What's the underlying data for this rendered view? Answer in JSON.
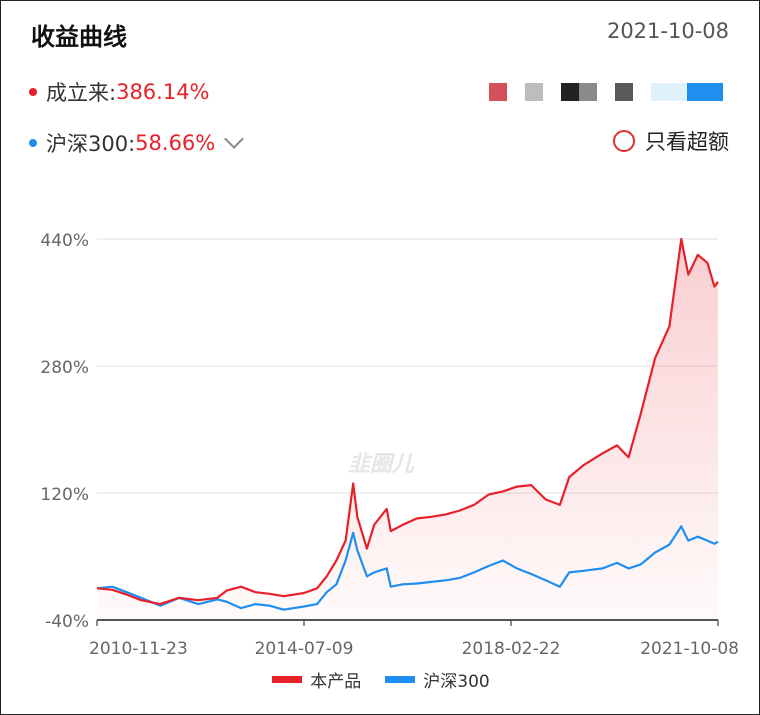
{
  "header": {
    "title": "收益曲线",
    "date": "2021-10-08",
    "product_label": "成立来:",
    "product_value": "386.14%",
    "bench_label": "沪深300:",
    "bench_value": "58.66%",
    "excess_label": "只看超额",
    "swatch_colors": [
      "#d4505a",
      "#ffffff",
      "#bdbdbd",
      "#ffffff",
      "#222222",
      "#8a8a8a",
      "#ffffff",
      "#5a5a5a",
      "#ffffff",
      "#dff1fb",
      "#dff1fb",
      "#1e8ff0",
      "#1e8ff0"
    ]
  },
  "watermark": "韭圈儿",
  "colors": {
    "product": "#e8202a",
    "benchmark": "#1e8ff0",
    "accent_text": "#e8202a"
  },
  "chart_data": {
    "type": "line",
    "x_ticks": [
      "2010-11-23",
      "2014-07-09",
      "2018-02-22",
      "2021-10-08"
    ],
    "y_ticks": [
      "440%",
      "280%",
      "120%",
      "-40%"
    ],
    "ylim": [
      -40,
      440
    ],
    "xlim": [
      "2010-11-23",
      "2021-10-08"
    ],
    "grid": true,
    "legend_position": "bottom",
    "series": [
      {
        "name": "本产品",
        "color": "#e8202a",
        "area": true,
        "points": [
          [
            "2010-11-23",
            0
          ],
          [
            "2011-03-01",
            -2
          ],
          [
            "2011-06-01",
            -8
          ],
          [
            "2011-09-01",
            -15
          ],
          [
            "2012-01-01",
            -20
          ],
          [
            "2012-05-01",
            -12
          ],
          [
            "2012-09-01",
            -15
          ],
          [
            "2013-01-01",
            -12
          ],
          [
            "2013-03-01",
            -3
          ],
          [
            "2013-06-01",
            2
          ],
          [
            "2013-09-01",
            -5
          ],
          [
            "2013-12-01",
            -7
          ],
          [
            "2014-03-01",
            -10
          ],
          [
            "2014-07-09",
            -6
          ],
          [
            "2014-10-01",
            0
          ],
          [
            "2014-12-01",
            15
          ],
          [
            "2015-02-01",
            35
          ],
          [
            "2015-04-01",
            60
          ],
          [
            "2015-05-20",
            132
          ],
          [
            "2015-06-15",
            90
          ],
          [
            "2015-08-15",
            50
          ],
          [
            "2015-10-01",
            80
          ],
          [
            "2015-12-20",
            100
          ],
          [
            "2016-01-15",
            72
          ],
          [
            "2016-04-01",
            80
          ],
          [
            "2016-07-01",
            88
          ],
          [
            "2016-10-01",
            90
          ],
          [
            "2017-01-01",
            93
          ],
          [
            "2017-04-01",
            98
          ],
          [
            "2017-07-01",
            105
          ],
          [
            "2017-10-01",
            118
          ],
          [
            "2018-01-01",
            122
          ],
          [
            "2018-04-01",
            128
          ],
          [
            "2018-07-01",
            130
          ],
          [
            "2018-10-01",
            112
          ],
          [
            "2019-01-01",
            105
          ],
          [
            "2019-03-01",
            140
          ],
          [
            "2019-06-01",
            155
          ],
          [
            "2019-10-01",
            170
          ],
          [
            "2020-01-01",
            180
          ],
          [
            "2020-03-15",
            165
          ],
          [
            "2020-06-01",
            220
          ],
          [
            "2020-09-01",
            290
          ],
          [
            "2020-12-01",
            330
          ],
          [
            "2021-02-15",
            440
          ],
          [
            "2021-04-01",
            395
          ],
          [
            "2021-06-01",
            420
          ],
          [
            "2021-08-01",
            410
          ],
          [
            "2021-09-15",
            380
          ],
          [
            "2021-10-08",
            386.14
          ]
        ]
      },
      {
        "name": "沪深300",
        "color": "#1e8ff0",
        "area": false,
        "points": [
          [
            "2010-11-23",
            0
          ],
          [
            "2011-03-01",
            2
          ],
          [
            "2011-06-01",
            -5
          ],
          [
            "2011-09-01",
            -12
          ],
          [
            "2012-01-01",
            -22
          ],
          [
            "2012-05-01",
            -12
          ],
          [
            "2012-09-01",
            -20
          ],
          [
            "2013-01-01",
            -14
          ],
          [
            "2013-03-01",
            -17
          ],
          [
            "2013-06-01",
            -25
          ],
          [
            "2013-09-01",
            -20
          ],
          [
            "2013-12-01",
            -22
          ],
          [
            "2014-03-01",
            -27
          ],
          [
            "2014-07-09",
            -23
          ],
          [
            "2014-10-01",
            -20
          ],
          [
            "2014-12-01",
            -5
          ],
          [
            "2015-02-01",
            5
          ],
          [
            "2015-04-01",
            35
          ],
          [
            "2015-05-20",
            70
          ],
          [
            "2015-06-15",
            48
          ],
          [
            "2015-08-15",
            15
          ],
          [
            "2015-10-01",
            20
          ],
          [
            "2015-12-20",
            25
          ],
          [
            "2016-01-15",
            2
          ],
          [
            "2016-04-01",
            5
          ],
          [
            "2016-07-01",
            6
          ],
          [
            "2016-10-01",
            8
          ],
          [
            "2017-01-01",
            10
          ],
          [
            "2017-04-01",
            13
          ],
          [
            "2017-07-01",
            20
          ],
          [
            "2017-10-01",
            28
          ],
          [
            "2018-01-01",
            35
          ],
          [
            "2018-04-01",
            25
          ],
          [
            "2018-07-01",
            18
          ],
          [
            "2018-10-01",
            10
          ],
          [
            "2019-01-01",
            2
          ],
          [
            "2019-03-01",
            20
          ],
          [
            "2019-06-01",
            22
          ],
          [
            "2019-10-01",
            25
          ],
          [
            "2020-01-01",
            32
          ],
          [
            "2020-03-15",
            25
          ],
          [
            "2020-06-01",
            30
          ],
          [
            "2020-09-01",
            45
          ],
          [
            "2020-12-01",
            55
          ],
          [
            "2021-02-15",
            78
          ],
          [
            "2021-04-01",
            60
          ],
          [
            "2021-06-01",
            65
          ],
          [
            "2021-08-01",
            60
          ],
          [
            "2021-09-15",
            56
          ],
          [
            "2021-10-08",
            58.66
          ]
        ]
      }
    ]
  }
}
